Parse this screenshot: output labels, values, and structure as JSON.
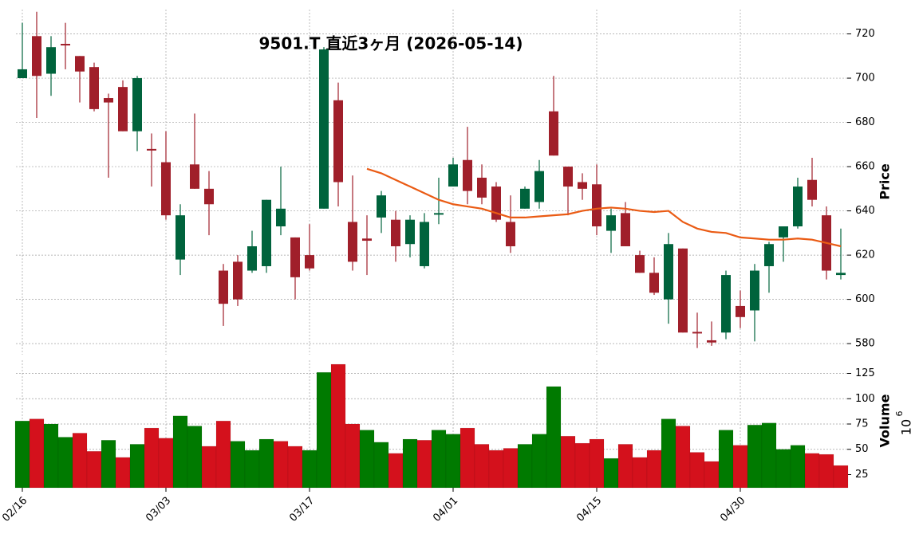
{
  "chart_data": {
    "type": "candlestick",
    "title": "9501.T 直近3ヶ月 (2026-05-14)",
    "categories": [
      "02/16",
      null,
      null,
      null,
      null,
      null,
      null,
      null,
      null,
      null,
      "03/03",
      null,
      null,
      null,
      null,
      null,
      null,
      null,
      null,
      null,
      "03/17",
      null,
      null,
      null,
      null,
      null,
      null,
      null,
      null,
      null,
      "04/01",
      null,
      null,
      null,
      null,
      null,
      null,
      null,
      null,
      null,
      "04/15",
      null,
      null,
      null,
      null,
      null,
      null,
      null,
      null,
      null,
      "04/30",
      null,
      null,
      null,
      null,
      null,
      null,
      null
    ],
    "open": [
      700,
      719,
      702,
      715.5,
      710,
      705,
      691,
      696,
      676,
      668,
      662,
      618,
      661,
      650,
      613,
      617,
      613,
      615,
      633,
      628,
      620,
      641,
      690,
      635,
      627.5,
      637,
      636,
      625,
      615,
      638.5,
      651,
      663,
      655,
      651,
      635,
      641,
      644,
      685,
      660,
      653,
      652,
      631,
      639,
      620,
      612,
      600,
      623,
      585.3,
      581.5,
      585,
      597,
      595,
      615,
      628,
      633,
      654,
      638,
      611
    ],
    "high": [
      725,
      730,
      719,
      725,
      710,
      707,
      693,
      699,
      701,
      675,
      676,
      643,
      684,
      658,
      616,
      620,
      631,
      645,
      660,
      628,
      634,
      714,
      698,
      656,
      638,
      649,
      640,
      638,
      639,
      655,
      664,
      678,
      661,
      653,
      647,
      651,
      663,
      701,
      660,
      657,
      661,
      641,
      644,
      622,
      619,
      630,
      623,
      594,
      590,
      613,
      604,
      616,
      626,
      633,
      655,
      664,
      642,
      632
    ],
    "low": [
      700,
      682,
      692,
      704,
      689,
      685,
      655,
      676,
      667,
      651,
      636,
      611,
      650,
      629,
      588,
      597,
      612,
      612,
      629,
      600,
      613,
      641,
      642,
      613,
      611,
      630,
      617,
      619,
      614,
      634,
      651,
      643,
      643,
      635,
      621,
      641,
      641,
      665,
      638,
      645,
      629,
      621,
      624,
      612,
      602,
      589,
      585,
      578,
      579,
      582,
      587,
      581,
      603,
      617,
      632,
      642,
      609,
      609
    ],
    "close": [
      704,
      701,
      714,
      715,
      703,
      686,
      689,
      676,
      700,
      667.5,
      638,
      638,
      650,
      643,
      598,
      600,
      624,
      645,
      641,
      610,
      614,
      713,
      653,
      617,
      626.5,
      647,
      624,
      636,
      635,
      639,
      661,
      649,
      646,
      636,
      624,
      650,
      658,
      665,
      651,
      650,
      633,
      638,
      624,
      612,
      603,
      625,
      585,
      584.7,
      580.5,
      611,
      592,
      613,
      625,
      633,
      651,
      645,
      613,
      612
    ],
    "up_color": "#00633c",
    "down_color": "#a01f2a",
    "ma": {
      "color": "#ea5b14",
      "values": [
        null,
        null,
        null,
        null,
        null,
        null,
        null,
        null,
        null,
        null,
        null,
        null,
        null,
        null,
        null,
        null,
        null,
        null,
        null,
        null,
        null,
        null,
        null,
        null,
        659,
        657,
        654,
        651,
        648,
        645,
        643,
        642,
        641,
        639,
        637,
        637,
        637.5,
        638,
        638.5,
        640,
        641,
        641.5,
        641,
        640,
        639.5,
        640,
        635,
        632,
        630.5,
        630,
        628,
        627.5,
        627,
        627,
        627.5,
        627,
        625.5,
        624
      ]
    },
    "ylabel": "Price",
    "ylim": [
      575,
      731
    ],
    "yticks": [
      580,
      600,
      620,
      640,
      660,
      680,
      700,
      720
    ],
    "grid": true,
    "volume": {
      "label": "Volume",
      "scale": {
        "base": 10,
        "exponent": 6
      },
      "values": [
        78,
        80,
        75,
        62,
        66,
        48,
        59,
        42,
        55,
        71,
        61,
        83,
        73,
        53,
        78,
        58,
        49,
        60,
        58,
        53,
        49,
        126,
        134,
        75,
        69,
        57,
        46,
        60,
        59,
        69,
        65,
        71,
        55,
        49,
        51,
        55,
        65,
        112,
        63,
        56,
        60,
        41,
        55,
        42,
        49,
        80,
        73,
        47,
        38,
        69,
        54,
        74,
        76,
        50,
        54,
        46,
        45,
        34
      ],
      "colors": [
        "#007a00",
        "#d4111c",
        "#007a00",
        "#007a00",
        "#d4111c",
        "#d4111c",
        "#007a00",
        "#d4111c",
        "#007a00",
        "#d4111c",
        "#d4111c",
        "#007a00",
        "#007a00",
        "#d4111c",
        "#d4111c",
        "#007a00",
        "#007a00",
        "#007a00",
        "#d4111c",
        "#d4111c",
        "#007a00",
        "#007a00",
        "#d4111c",
        "#d4111c",
        "#007a00",
        "#007a00",
        "#d4111c",
        "#007a00",
        "#d4111c",
        "#007a00",
        "#007a00",
        "#d4111c",
        "#d4111c",
        "#d4111c",
        "#d4111c",
        "#007a00",
        "#007a00",
        "#007a00",
        "#d4111c",
        "#d4111c",
        "#d4111c",
        "#007a00",
        "#d4111c",
        "#d4111c",
        "#d4111c",
        "#007a00",
        "#d4111c",
        "#d4111c",
        "#d4111c",
        "#007a00",
        "#d4111c",
        "#007a00",
        "#007a00",
        "#007a00",
        "#007a00",
        "#d4111c",
        "#d4111c",
        "#d4111c"
      ],
      "ylim": [
        12,
        138
      ],
      "yticks": [
        25,
        50,
        75,
        100,
        125
      ]
    }
  }
}
